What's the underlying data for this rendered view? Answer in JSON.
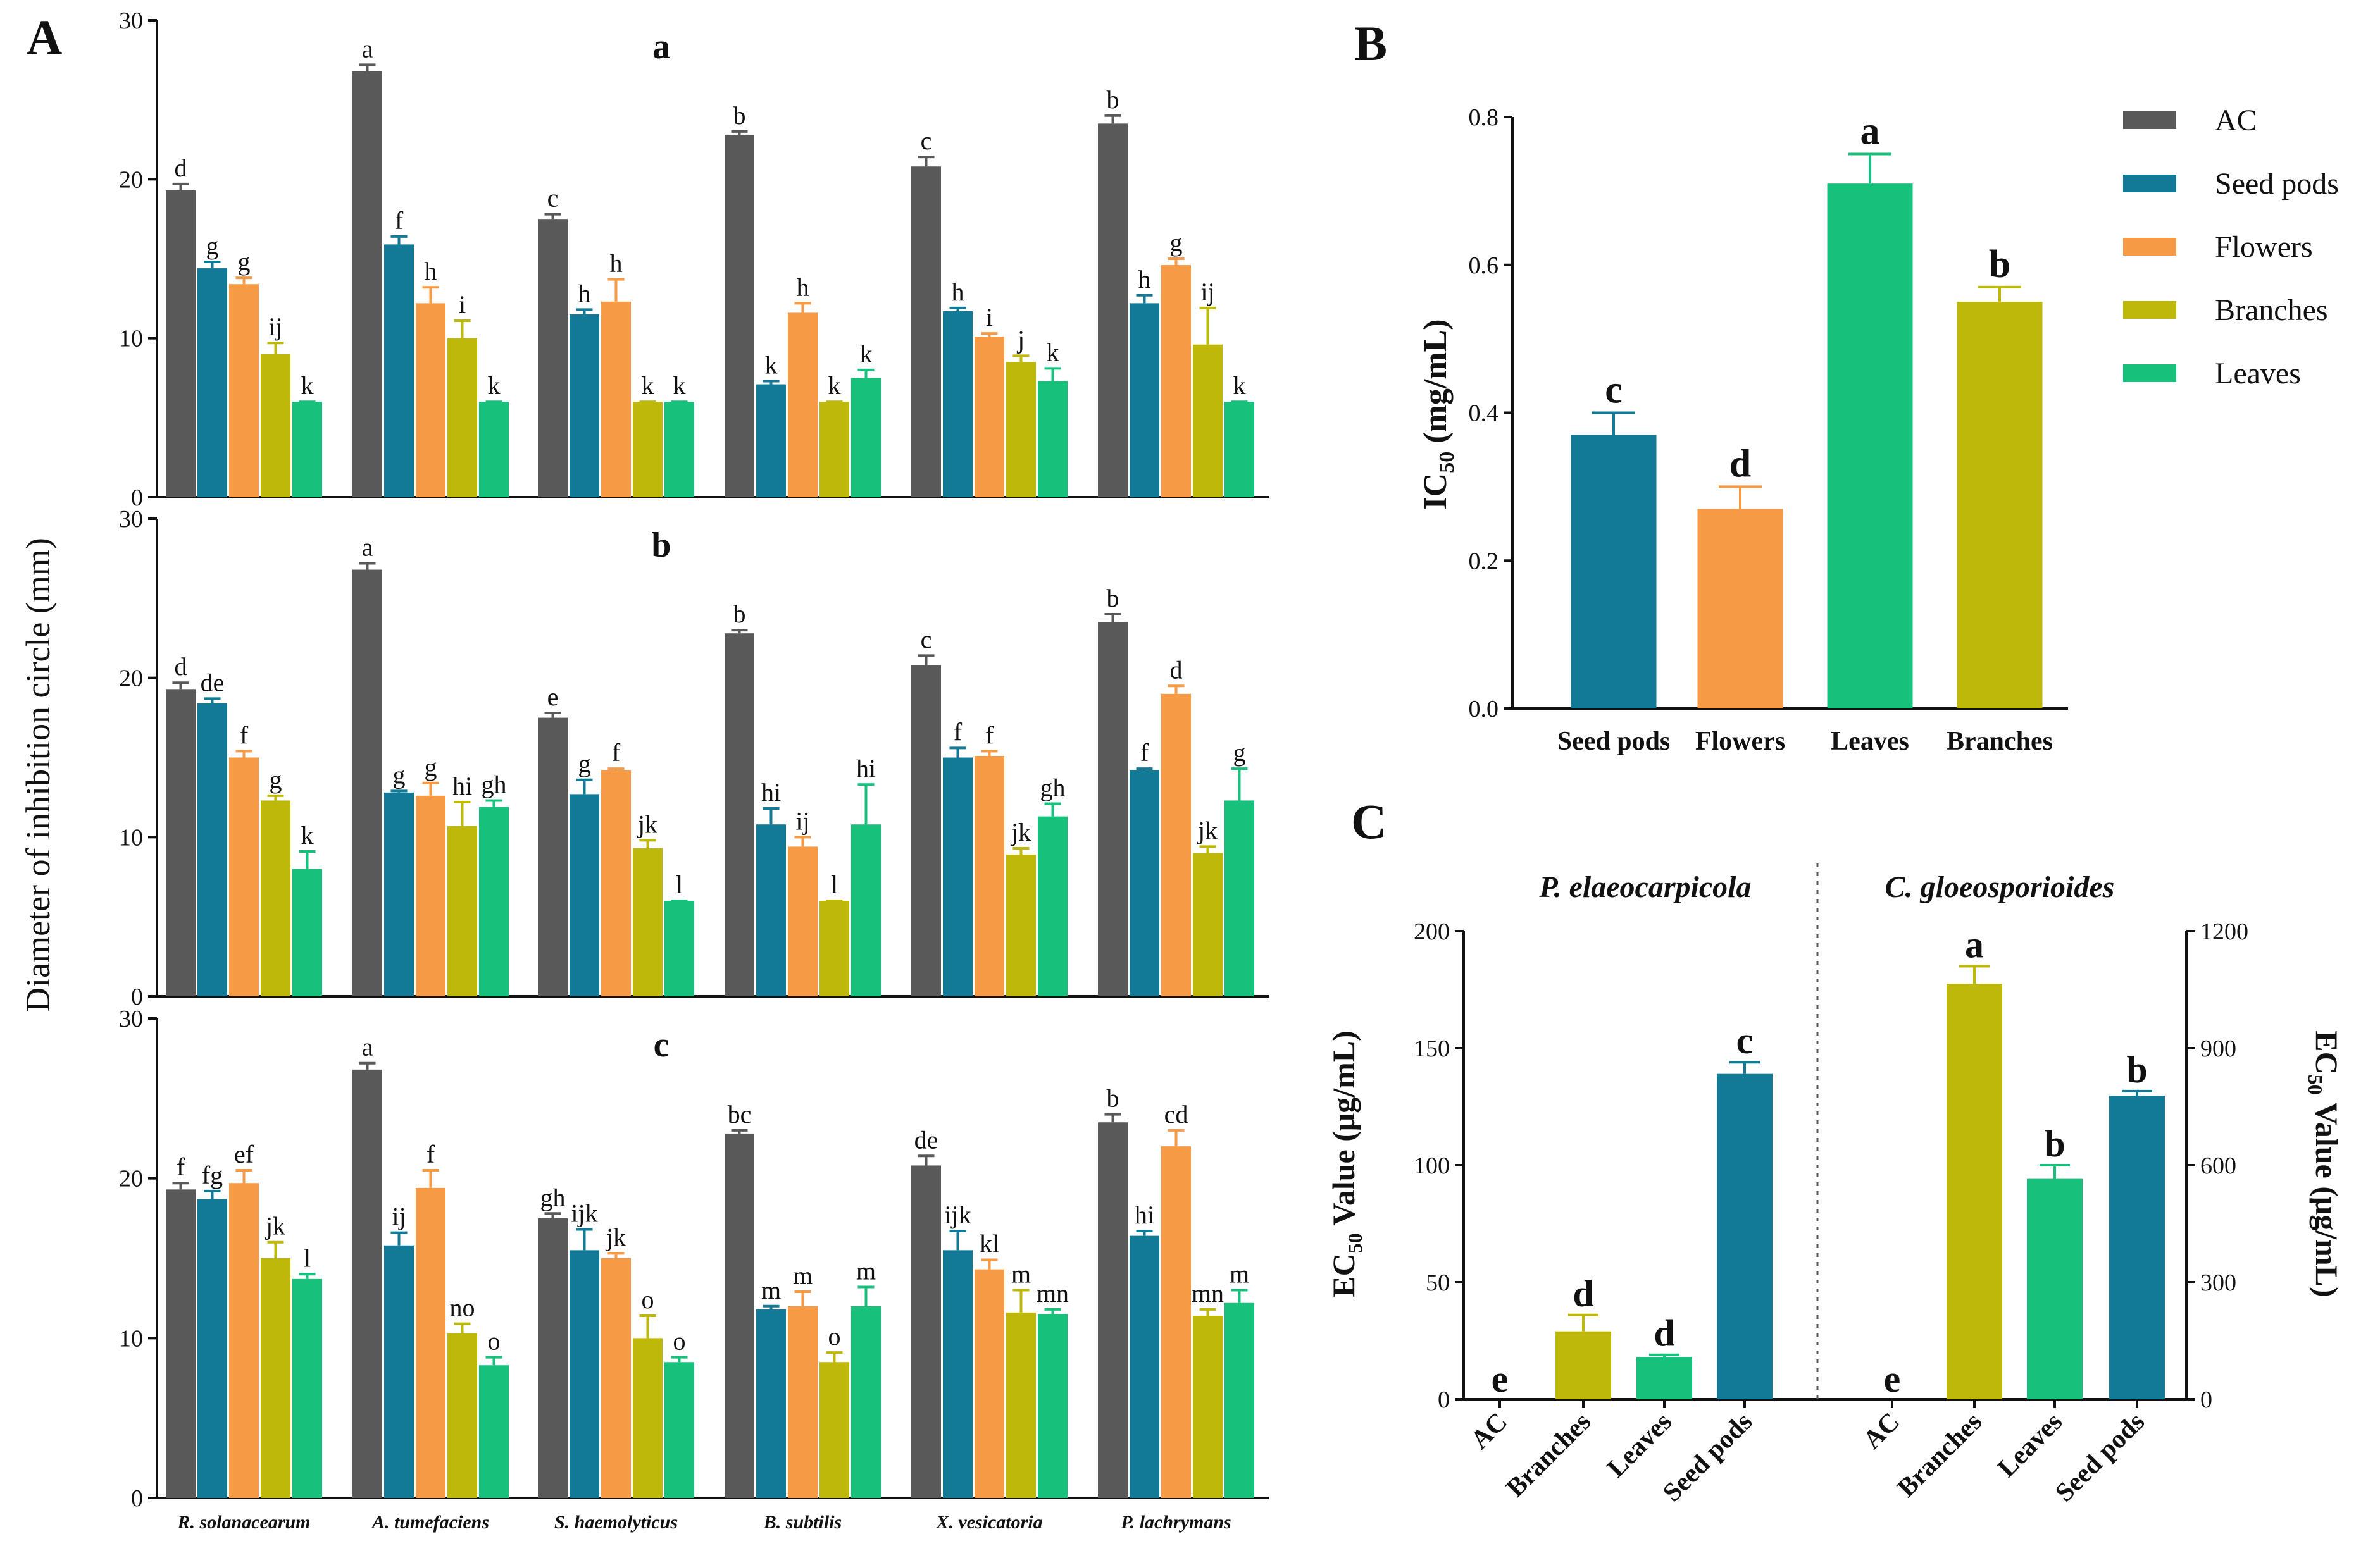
{
  "colors": {
    "AC": "#595959",
    "Seed pods": "#127a96",
    "Flowers": "#f79a45",
    "Branches": "#bdb809",
    "Leaves": "#17c17c"
  },
  "panel_labels": {
    "A": "A",
    "B": "B",
    "C": "C"
  },
  "chart_data": [
    {
      "id": "A",
      "type": "bar",
      "ylabel": "Diameter of inhibition circle  (mm)",
      "ylim": [
        0,
        30
      ],
      "yticks": [
        "0",
        "10",
        "20",
        "30"
      ],
      "categories": [
        "R. solanacearum",
        "A. tumefaciens",
        "S. haemolyticus",
        "B. subtilis",
        "X. vesicatoria",
        "P. lachrymans"
      ],
      "series_names": [
        "AC",
        "Seed pods",
        "Flowers",
        "Branches",
        "Leaves"
      ],
      "subplots": [
        {
          "title": "a",
          "values": [
            [
              19.3,
              14.4,
              13.4,
              9.0,
              6.0
            ],
            [
              26.8,
              15.9,
              12.2,
              10.0,
              6.0
            ],
            [
              17.5,
              11.5,
              12.3,
              6.0,
              6.0
            ],
            [
              22.8,
              7.1,
              11.6,
              6.0,
              7.5
            ],
            [
              20.8,
              11.7,
              10.1,
              8.5,
              7.3
            ],
            [
              23.5,
              12.2,
              14.6,
              9.6,
              6.0
            ]
          ],
          "errors": [
            [
              0.4,
              0.4,
              0.4,
              0.7,
              0
            ],
            [
              0.4,
              0.5,
              1.0,
              1.1,
              0
            ],
            [
              0.3,
              0.3,
              1.4,
              0,
              0
            ],
            [
              0.2,
              0.2,
              0.6,
              0,
              0.5
            ],
            [
              0.6,
              0.2,
              0.2,
              0.4,
              0.8
            ],
            [
              0.5,
              0.5,
              0.4,
              2.3,
              0
            ]
          ],
          "letters": [
            [
              "d",
              "g",
              "g",
              "ij",
              "k"
            ],
            [
              "a",
              "f",
              "h",
              "i",
              "k"
            ],
            [
              "c",
              "h",
              "h",
              "k",
              "k"
            ],
            [
              "b",
              "k",
              "h",
              "k",
              "k"
            ],
            [
              "c",
              "h",
              "i",
              "j",
              "k"
            ],
            [
              "b",
              "h",
              "g",
              "ij",
              "k"
            ]
          ]
        },
        {
          "title": "b",
          "values": [
            [
              19.3,
              18.4,
              15.0,
              12.3,
              8.0
            ],
            [
              26.8,
              12.8,
              12.6,
              10.7,
              11.9
            ],
            [
              17.5,
              12.7,
              14.2,
              9.3,
              6.0
            ],
            [
              22.8,
              10.8,
              9.4,
              6.0,
              10.8
            ],
            [
              20.8,
              15.0,
              15.1,
              8.9,
              11.3
            ],
            [
              23.5,
              14.2,
              19.0,
              9.0,
              12.3
            ]
          ],
          "errors": [
            [
              0.4,
              0.3,
              0.4,
              0.3,
              1.1
            ],
            [
              0.4,
              0.1,
              0.8,
              1.5,
              0.4
            ],
            [
              0.3,
              0.9,
              0.1,
              0.5,
              0
            ],
            [
              0.2,
              1.0,
              0.6,
              0,
              2.5
            ],
            [
              0.6,
              0.6,
              0.3,
              0.4,
              0.8
            ],
            [
              0.5,
              0.1,
              0.5,
              0.4,
              2.0
            ]
          ],
          "letters": [
            [
              "d",
              "de",
              "f",
              "g",
              "k"
            ],
            [
              "a",
              "g",
              "g",
              "hi",
              "gh"
            ],
            [
              "e",
              "g",
              "f",
              "jk",
              "l"
            ],
            [
              "b",
              "hi",
              "ij",
              "l",
              "hi"
            ],
            [
              "c",
              "f",
              "f",
              "jk",
              "gh"
            ],
            [
              "b",
              "f",
              "d",
              "jk",
              "g"
            ]
          ]
        },
        {
          "title": "c",
          "values": [
            [
              19.3,
              18.7,
              19.7,
              15.0,
              13.7
            ],
            [
              26.8,
              15.8,
              19.4,
              10.3,
              8.3
            ],
            [
              17.5,
              15.5,
              15.0,
              10.0,
              8.5
            ],
            [
              22.8,
              11.8,
              12.0,
              8.5,
              12.0
            ],
            [
              20.8,
              15.5,
              14.3,
              11.6,
              11.5
            ],
            [
              23.5,
              16.4,
              22.0,
              11.4,
              12.2
            ]
          ],
          "errors": [
            [
              0.4,
              0.5,
              0.8,
              1.0,
              0.3
            ],
            [
              0.4,
              0.8,
              1.1,
              0.6,
              0.5
            ],
            [
              0.3,
              1.3,
              0.3,
              1.4,
              0.3
            ],
            [
              0.2,
              0.2,
              0.9,
              0.6,
              1.2
            ],
            [
              0.6,
              1.2,
              0.6,
              1.4,
              0.3
            ],
            [
              0.5,
              0.3,
              1.0,
              0.4,
              0.8
            ]
          ],
          "letters": [
            [
              "f",
              "fg",
              "ef",
              "jk",
              "l"
            ],
            [
              "a",
              "ij",
              "f",
              "no",
              "o"
            ],
            [
              "gh",
              "ijk",
              "jk",
              "o",
              "o"
            ],
            [
              "bc",
              "m",
              "m",
              "o",
              "m"
            ],
            [
              "de",
              "ijk",
              "kl",
              "m",
              "mn"
            ],
            [
              "b",
              "hi",
              "cd",
              "mn",
              "m"
            ]
          ]
        }
      ]
    },
    {
      "id": "B",
      "type": "bar",
      "ylabel_main": "IC",
      "ylabel_sub": "50",
      "ylabel_tail": " (mg/mL)",
      "ylim": [
        0,
        0.8
      ],
      "yticks": [
        "0.0",
        "0.2",
        "0.4",
        "0.6",
        "0.8"
      ],
      "categories": [
        "Seed pods",
        "Flowers",
        "Leaves",
        "Branches"
      ],
      "values": [
        0.37,
        0.27,
        0.71,
        0.55
      ],
      "errors": [
        0.03,
        0.03,
        0.04,
        0.02
      ],
      "letters": [
        "c",
        "d",
        "a",
        "b"
      ]
    },
    {
      "id": "C",
      "type": "bar",
      "ylabel_left_main": "EC",
      "ylabel_left_sub": "50",
      "ylabel_left_tail": " Value (μg/mL)",
      "ylabel_right_main": "EC",
      "ylabel_right_sub": "50",
      "ylabel_right_tail": " Value (μg/mL)",
      "left": {
        "title": "P. elaeocarpicola",
        "ylim": [
          0,
          200
        ],
        "yticks": [
          "0",
          "50",
          "100",
          "150",
          "200"
        ],
        "categories": [
          "AC",
          "Branches",
          "Leaves",
          "Seed pods"
        ],
        "values": [
          0,
          29,
          18,
          139
        ],
        "errors": [
          0,
          7,
          1,
          5
        ],
        "letters": [
          "e",
          "d",
          "d",
          "c"
        ]
      },
      "right": {
        "title": "C. gloeosporioides",
        "ylim": [
          0,
          1200
        ],
        "yticks": [
          "0",
          "300",
          "600",
          "900",
          "1200"
        ],
        "categories": [
          "AC",
          "Branches",
          "Leaves",
          "Seed pods"
        ],
        "values": [
          0,
          1065,
          565,
          778
        ],
        "errors": [
          0,
          45,
          35,
          12
        ],
        "letters": [
          "e",
          "a",
          "b",
          "b"
        ]
      }
    }
  ],
  "legend": [
    "AC",
    "Seed pods",
    "Flowers",
    "Branches",
    "Leaves"
  ]
}
